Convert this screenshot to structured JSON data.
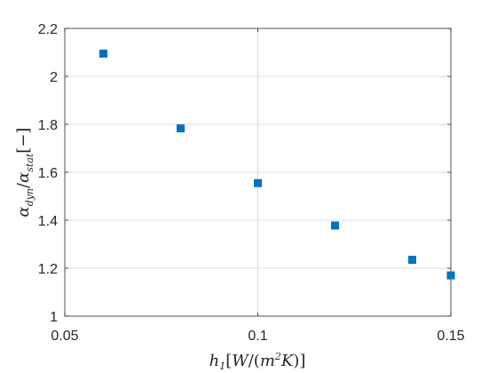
{
  "chart_data": {
    "type": "scatter",
    "x": [
      0.06,
      0.08,
      0.1,
      0.12,
      0.14,
      0.15
    ],
    "y": [
      2.095,
      1.783,
      1.555,
      1.378,
      1.235,
      1.17
    ],
    "xlim": [
      0.05,
      0.15
    ],
    "ylim": [
      1.0,
      2.2
    ],
    "xticks": [
      0.05,
      0.1,
      0.15
    ],
    "xtick_labels": [
      "0.05",
      "0.1",
      "0.15"
    ],
    "yticks": [
      1.0,
      1.2,
      1.4,
      1.6,
      1.8,
      2.0,
      2.2
    ],
    "ytick_labels": [
      "1",
      "1.2",
      "1.4",
      "1.6",
      "1.8",
      "2",
      "2.2"
    ],
    "xlabel": "h1[W/(m2K)]",
    "ylabel": "αdyn/αstat[−]",
    "grid": true,
    "marker": "square",
    "marker_color": "#0072BD"
  }
}
